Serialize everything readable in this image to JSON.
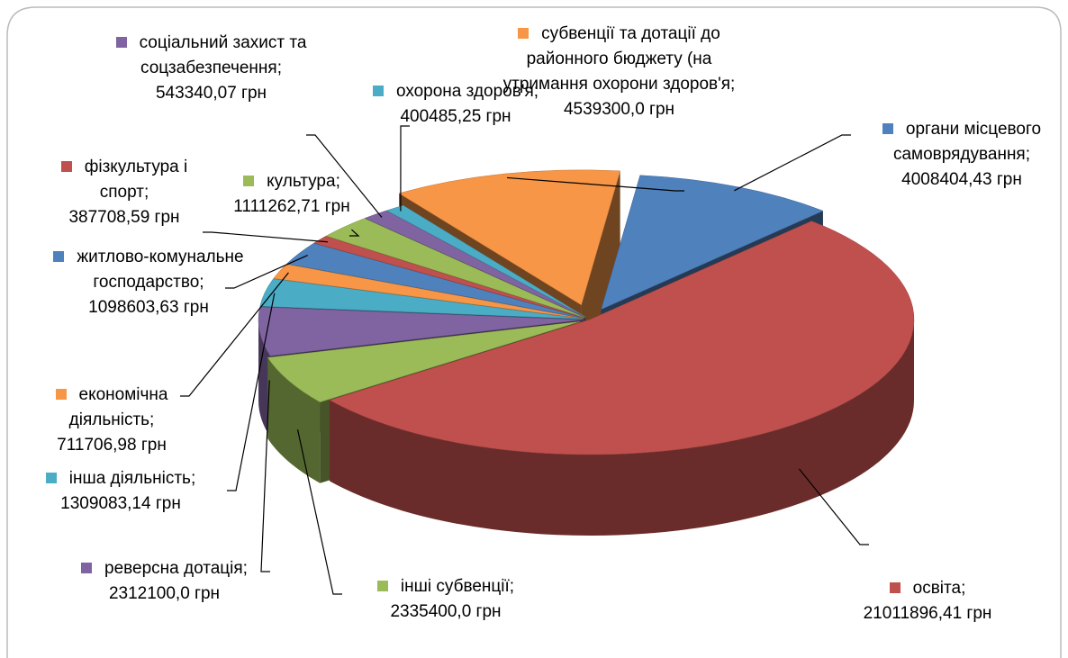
{
  "chart_data": {
    "type": "pie",
    "categories": [
      "органи місцевого самоврядування;",
      "освіта;",
      "інші субвенції;",
      "реверсна дотація;",
      "інша діяльність;",
      "економічна діяльність;",
      "житлово-комунальне господарство;",
      "фізкультура і спорт;",
      "культура;",
      "соціальний захист та соцзабезпечення;",
      "охорона здоров'я;",
      "субвенції та дотації до районного бюджету (на утримання охорони здоров'я;"
    ],
    "values": [
      4008404.43,
      21011896.41,
      2335400.0,
      2312100.0,
      1309083.14,
      711706.98,
      1098603.63,
      387708.59,
      1111262.71,
      543340.07,
      400485.25,
      4539300.0
    ],
    "value_labels": [
      "4008404,43 грн",
      "21011896,41 грн",
      "2335400,0 грн",
      "2312100,0 грн",
      "1309083,14 грн",
      "711706,98 грн",
      "1098603,63 грн",
      "387708,59 грн",
      "1111262,71 грн",
      "543340,07 грн",
      "400485,25 грн",
      "4539300,0 грн"
    ],
    "colors": [
      "#4f81bd",
      "#c0504d",
      "#9bbb59",
      "#8064a2",
      "#4bacc6",
      "#f79646",
      "#4f81bd",
      "#c0504d",
      "#9bbb59",
      "#8064a2",
      "#4bacc6",
      "#f79646"
    ]
  }
}
